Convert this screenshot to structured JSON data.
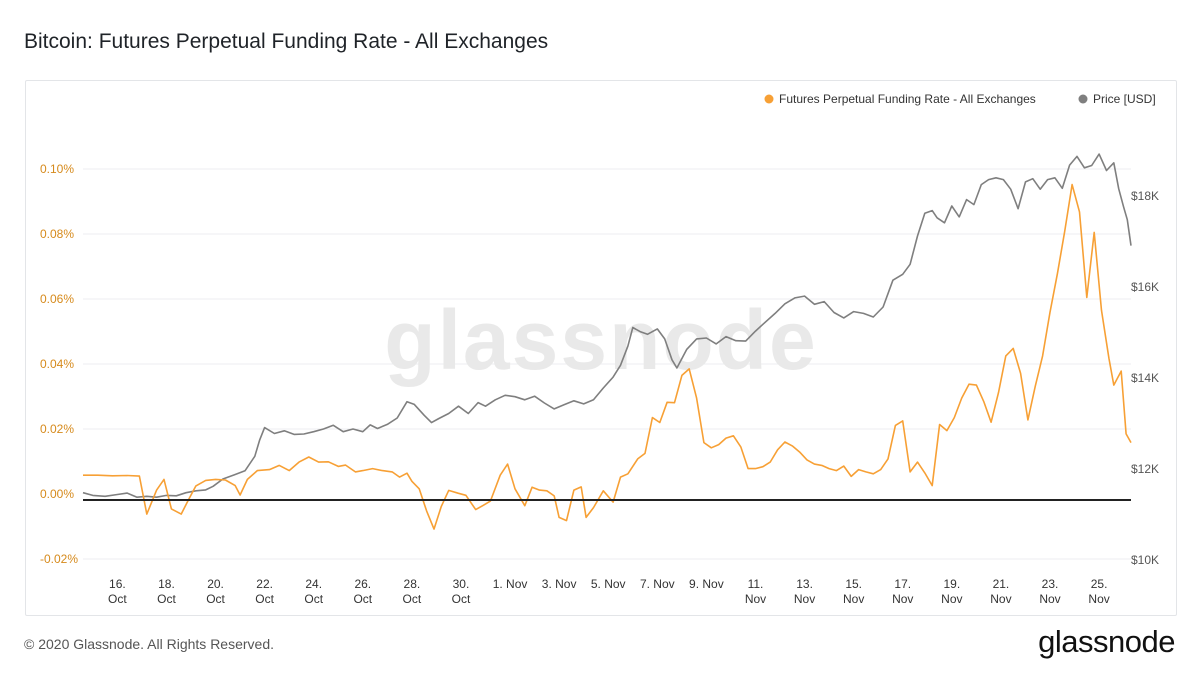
{
  "title": "Bitcoin: Futures Perpetual Funding Rate - All Exchanges",
  "footer": "© 2020 Glassnode. All Rights Reserved.",
  "brand": "glassnode",
  "watermark": "glassnode",
  "colors": {
    "funding": "#f7a035",
    "price": "#7f7f7f",
    "zero_line": "#222222",
    "left_axis_text": "#d68a1c"
  },
  "chart_data": {
    "type": "line",
    "title": "Bitcoin: Futures Perpetual Funding Rate - All Exchanges",
    "legend_position": "top-right",
    "grid": "horizontal",
    "x_ticks": [
      {
        "day": 16,
        "l1": "16.",
        "l2": "Oct"
      },
      {
        "day": 18,
        "l1": "18.",
        "l2": "Oct"
      },
      {
        "day": 20,
        "l1": "20.",
        "l2": "Oct"
      },
      {
        "day": 22,
        "l1": "22.",
        "l2": "Oct"
      },
      {
        "day": 24,
        "l1": "24.",
        "l2": "Oct"
      },
      {
        "day": 26,
        "l1": "26.",
        "l2": "Oct"
      },
      {
        "day": 28,
        "l1": "28.",
        "l2": "Oct"
      },
      {
        "day": 30,
        "l1": "30.",
        "l2": "Oct"
      },
      {
        "day": 32,
        "l1": "1. Nov",
        "l2": ""
      },
      {
        "day": 34,
        "l1": "3. Nov",
        "l2": ""
      },
      {
        "day": 36,
        "l1": "5. Nov",
        "l2": ""
      },
      {
        "day": 38,
        "l1": "7. Nov",
        "l2": ""
      },
      {
        "day": 40,
        "l1": "9. Nov",
        "l2": ""
      },
      {
        "day": 42,
        "l1": "11.",
        "l2": "Nov"
      },
      {
        "day": 44,
        "l1": "13.",
        "l2": "Nov"
      },
      {
        "day": 46,
        "l1": "15.",
        "l2": "Nov"
      },
      {
        "day": 48,
        "l1": "17.",
        "l2": "Nov"
      },
      {
        "day": 50,
        "l1": "19.",
        "l2": "Nov"
      },
      {
        "day": 52,
        "l1": "21.",
        "l2": "Nov"
      },
      {
        "day": 54,
        "l1": "23.",
        "l2": "Nov"
      },
      {
        "day": 56,
        "l1": "25.",
        "l2": "Nov"
      }
    ],
    "x_range_days_oct": [
      14.6,
      57.3
    ],
    "y_left": {
      "ticks": [
        0.1,
        0.08,
        0.06,
        0.04,
        0.02,
        0.0,
        -0.02
      ],
      "labels": [
        "0.10%",
        "0.08%",
        "0.06%",
        "0.04%",
        "0.02%",
        "0.00%",
        "-0.02%"
      ],
      "range": [
        -0.02,
        0.1
      ]
    },
    "y_right": {
      "ticks": [
        18000,
        16000,
        14000,
        12000,
        10000
      ],
      "labels": [
        "$18K",
        "$16K",
        "$14K",
        "$12K",
        "$10K"
      ],
      "range": [
        10000,
        18000
      ]
    },
    "series": [
      {
        "name": "Futures Perpetual Funding Rate - All Exchanges",
        "axis": "left",
        "points": [
          [
            14.6,
            0.0058
          ],
          [
            15.2,
            0.0058
          ],
          [
            15.8,
            0.0056
          ],
          [
            16.4,
            0.0057
          ],
          [
            16.9,
            0.0055
          ],
          [
            17.2,
            -0.0062
          ],
          [
            17.6,
            0.0012
          ],
          [
            17.9,
            0.0045
          ],
          [
            18.2,
            -0.0046
          ],
          [
            18.6,
            -0.0062
          ],
          [
            18.9,
            -0.0018
          ],
          [
            19.2,
            0.0025
          ],
          [
            19.6,
            0.0042
          ],
          [
            20.0,
            0.0045
          ],
          [
            20.4,
            0.0043
          ],
          [
            20.8,
            0.0026
          ],
          [
            21.0,
            -0.0003
          ],
          [
            21.3,
            0.0045
          ],
          [
            21.7,
            0.0072
          ],
          [
            22.2,
            0.0075
          ],
          [
            22.6,
            0.0088
          ],
          [
            23.0,
            0.0072
          ],
          [
            23.4,
            0.0098
          ],
          [
            23.8,
            0.0114
          ],
          [
            24.2,
            0.0098
          ],
          [
            24.6,
            0.0099
          ],
          [
            25.0,
            0.0085
          ],
          [
            25.3,
            0.0089
          ],
          [
            25.7,
            0.0068
          ],
          [
            26.0,
            0.0072
          ],
          [
            26.4,
            0.0078
          ],
          [
            26.8,
            0.0072
          ],
          [
            27.2,
            0.0068
          ],
          [
            27.5,
            0.0052
          ],
          [
            27.8,
            0.0064
          ],
          [
            28.0,
            0.0039
          ],
          [
            28.3,
            0.0016
          ],
          [
            28.6,
            -0.0052
          ],
          [
            28.9,
            -0.0108
          ],
          [
            29.2,
            -0.0038
          ],
          [
            29.5,
            0.0011
          ],
          [
            29.9,
            0.0002
          ],
          [
            30.2,
            -0.0004
          ],
          [
            30.6,
            -0.0048
          ],
          [
            30.9,
            -0.0035
          ],
          [
            31.2,
            -0.0022
          ],
          [
            31.6,
            0.0058
          ],
          [
            31.9,
            0.0092
          ],
          [
            32.2,
            0.0016
          ],
          [
            32.6,
            -0.0036
          ],
          [
            32.9,
            0.0021
          ],
          [
            33.2,
            0.0012
          ],
          [
            33.5,
            0.001
          ],
          [
            33.8,
            -0.0006
          ],
          [
            34.0,
            -0.0072
          ],
          [
            34.3,
            -0.0082
          ],
          [
            34.6,
            0.0012
          ],
          [
            34.9,
            0.0022
          ],
          [
            35.1,
            -0.0072
          ],
          [
            35.4,
            -0.0042
          ],
          [
            35.8,
            0.001
          ],
          [
            36.2,
            -0.0025
          ],
          [
            36.5,
            0.0052
          ],
          [
            36.8,
            0.0062
          ],
          [
            37.2,
            0.0108
          ],
          [
            37.5,
            0.0125
          ],
          [
            37.8,
            0.0235
          ],
          [
            38.1,
            0.022
          ],
          [
            38.4,
            0.0282
          ],
          [
            38.7,
            0.0281
          ],
          [
            39.0,
            0.0365
          ],
          [
            39.3,
            0.0385
          ],
          [
            39.6,
            0.0295
          ],
          [
            39.9,
            0.0158
          ],
          [
            40.2,
            0.0142
          ],
          [
            40.5,
            0.0152
          ],
          [
            40.8,
            0.0172
          ],
          [
            41.1,
            0.0179
          ],
          [
            41.4,
            0.0145
          ],
          [
            41.7,
            0.0078
          ],
          [
            42.0,
            0.0078
          ],
          [
            42.3,
            0.0084
          ],
          [
            42.6,
            0.0098
          ],
          [
            42.9,
            0.0136
          ],
          [
            43.2,
            0.016
          ],
          [
            43.5,
            0.0148
          ],
          [
            43.8,
            0.0129
          ],
          [
            44.1,
            0.0105
          ],
          [
            44.4,
            0.0092
          ],
          [
            44.7,
            0.0088
          ],
          [
            45.0,
            0.0078
          ],
          [
            45.3,
            0.0072
          ],
          [
            45.6,
            0.0086
          ],
          [
            45.9,
            0.0054
          ],
          [
            46.2,
            0.0075
          ],
          [
            46.5,
            0.0068
          ],
          [
            46.8,
            0.0062
          ],
          [
            47.1,
            0.0075
          ],
          [
            47.4,
            0.0108
          ],
          [
            47.7,
            0.0211
          ],
          [
            48.0,
            0.0225
          ],
          [
            48.3,
            0.0068
          ],
          [
            48.6,
            0.0098
          ],
          [
            48.9,
            0.0065
          ],
          [
            49.2,
            0.0026
          ],
          [
            49.5,
            0.0214
          ],
          [
            49.8,
            0.0195
          ],
          [
            50.1,
            0.0235
          ],
          [
            50.4,
            0.0295
          ],
          [
            50.7,
            0.0338
          ],
          [
            51.0,
            0.0335
          ],
          [
            51.3,
            0.0285
          ],
          [
            51.6,
            0.0221
          ],
          [
            51.9,
            0.0312
          ],
          [
            52.2,
            0.0425
          ],
          [
            52.5,
            0.0448
          ],
          [
            52.8,
            0.0371
          ],
          [
            53.1,
            0.0228
          ],
          [
            53.4,
            0.0332
          ],
          [
            53.7,
            0.0425
          ],
          [
            54.0,
            0.0559
          ],
          [
            54.3,
            0.0678
          ],
          [
            54.6,
            0.0808
          ],
          [
            54.9,
            0.0952
          ],
          [
            55.2,
            0.0868
          ],
          [
            55.5,
            0.0605
          ],
          [
            55.8,
            0.0805
          ],
          [
            56.1,
            0.0565
          ],
          [
            56.4,
            0.0418
          ],
          [
            56.6,
            0.0335
          ],
          [
            56.9,
            0.0378
          ],
          [
            57.1,
            0.0185
          ],
          [
            57.3,
            0.0158
          ]
        ]
      },
      {
        "name": "Price [USD]",
        "axis": "right",
        "points": [
          [
            14.6,
            11480
          ],
          [
            15.0,
            11420
          ],
          [
            15.5,
            11400
          ],
          [
            16.0,
            11440
          ],
          [
            16.4,
            11470
          ],
          [
            16.8,
            11380
          ],
          [
            17.2,
            11400
          ],
          [
            17.6,
            11380
          ],
          [
            18.0,
            11420
          ],
          [
            18.4,
            11410
          ],
          [
            18.8,
            11480
          ],
          [
            19.2,
            11520
          ],
          [
            19.6,
            11540
          ],
          [
            19.9,
            11620
          ],
          [
            20.3,
            11780
          ],
          [
            20.8,
            11880
          ],
          [
            21.2,
            11960
          ],
          [
            21.6,
            12280
          ],
          [
            21.8,
            12640
          ],
          [
            22.0,
            12910
          ],
          [
            22.4,
            12780
          ],
          [
            22.8,
            12840
          ],
          [
            23.2,
            12760
          ],
          [
            23.6,
            12770
          ],
          [
            24.0,
            12820
          ],
          [
            24.4,
            12880
          ],
          [
            24.8,
            12960
          ],
          [
            25.2,
            12820
          ],
          [
            25.6,
            12880
          ],
          [
            26.0,
            12820
          ],
          [
            26.3,
            12970
          ],
          [
            26.6,
            12890
          ],
          [
            27.0,
            12980
          ],
          [
            27.4,
            13120
          ],
          [
            27.8,
            13480
          ],
          [
            28.1,
            13420
          ],
          [
            28.5,
            13180
          ],
          [
            28.8,
            13020
          ],
          [
            29.1,
            13110
          ],
          [
            29.5,
            13220
          ],
          [
            29.9,
            13380
          ],
          [
            30.3,
            13220
          ],
          [
            30.7,
            13460
          ],
          [
            31.0,
            13380
          ],
          [
            31.4,
            13520
          ],
          [
            31.8,
            13620
          ],
          [
            32.2,
            13590
          ],
          [
            32.6,
            13520
          ],
          [
            33.0,
            13600
          ],
          [
            33.4,
            13450
          ],
          [
            33.8,
            13320
          ],
          [
            34.2,
            13410
          ],
          [
            34.6,
            13500
          ],
          [
            35.0,
            13430
          ],
          [
            35.4,
            13520
          ],
          [
            35.8,
            13780
          ],
          [
            36.2,
            14020
          ],
          [
            36.5,
            14280
          ],
          [
            36.8,
            14700
          ],
          [
            37.0,
            15110
          ],
          [
            37.3,
            15020
          ],
          [
            37.6,
            14960
          ],
          [
            38.0,
            15080
          ],
          [
            38.3,
            14860
          ],
          [
            38.6,
            14400
          ],
          [
            38.8,
            14220
          ],
          [
            39.2,
            14630
          ],
          [
            39.6,
            14860
          ],
          [
            40.0,
            14880
          ],
          [
            40.4,
            14750
          ],
          [
            40.8,
            14910
          ],
          [
            41.2,
            14820
          ],
          [
            41.6,
            14810
          ],
          [
            42.0,
            15030
          ],
          [
            42.3,
            15180
          ],
          [
            42.8,
            15420
          ],
          [
            43.2,
            15630
          ],
          [
            43.6,
            15760
          ],
          [
            44.0,
            15800
          ],
          [
            44.4,
            15620
          ],
          [
            44.8,
            15680
          ],
          [
            45.2,
            15440
          ],
          [
            45.6,
            15320
          ],
          [
            46.0,
            15460
          ],
          [
            46.4,
            15420
          ],
          [
            46.8,
            15340
          ],
          [
            47.2,
            15560
          ],
          [
            47.6,
            16150
          ],
          [
            48.0,
            16280
          ],
          [
            48.3,
            16500
          ],
          [
            48.6,
            17120
          ],
          [
            48.9,
            17620
          ],
          [
            49.2,
            17680
          ],
          [
            49.4,
            17520
          ],
          [
            49.7,
            17410
          ],
          [
            50.0,
            17780
          ],
          [
            50.3,
            17540
          ],
          [
            50.6,
            17920
          ],
          [
            50.9,
            17810
          ],
          [
            51.2,
            18250
          ],
          [
            51.5,
            18360
          ],
          [
            51.8,
            18400
          ],
          [
            52.1,
            18360
          ],
          [
            52.4,
            18150
          ],
          [
            52.7,
            17720
          ],
          [
            53.0,
            18310
          ],
          [
            53.3,
            18380
          ],
          [
            53.6,
            18150
          ],
          [
            53.9,
            18360
          ],
          [
            54.2,
            18400
          ],
          [
            54.5,
            18170
          ],
          [
            54.8,
            18680
          ],
          [
            55.1,
            18870
          ],
          [
            55.4,
            18620
          ],
          [
            55.7,
            18670
          ],
          [
            56.0,
            18920
          ],
          [
            56.3,
            18560
          ],
          [
            56.6,
            18730
          ],
          [
            56.8,
            18160
          ],
          [
            57.0,
            17760
          ],
          [
            57.15,
            17480
          ],
          [
            57.3,
            16910
          ]
        ]
      }
    ]
  }
}
